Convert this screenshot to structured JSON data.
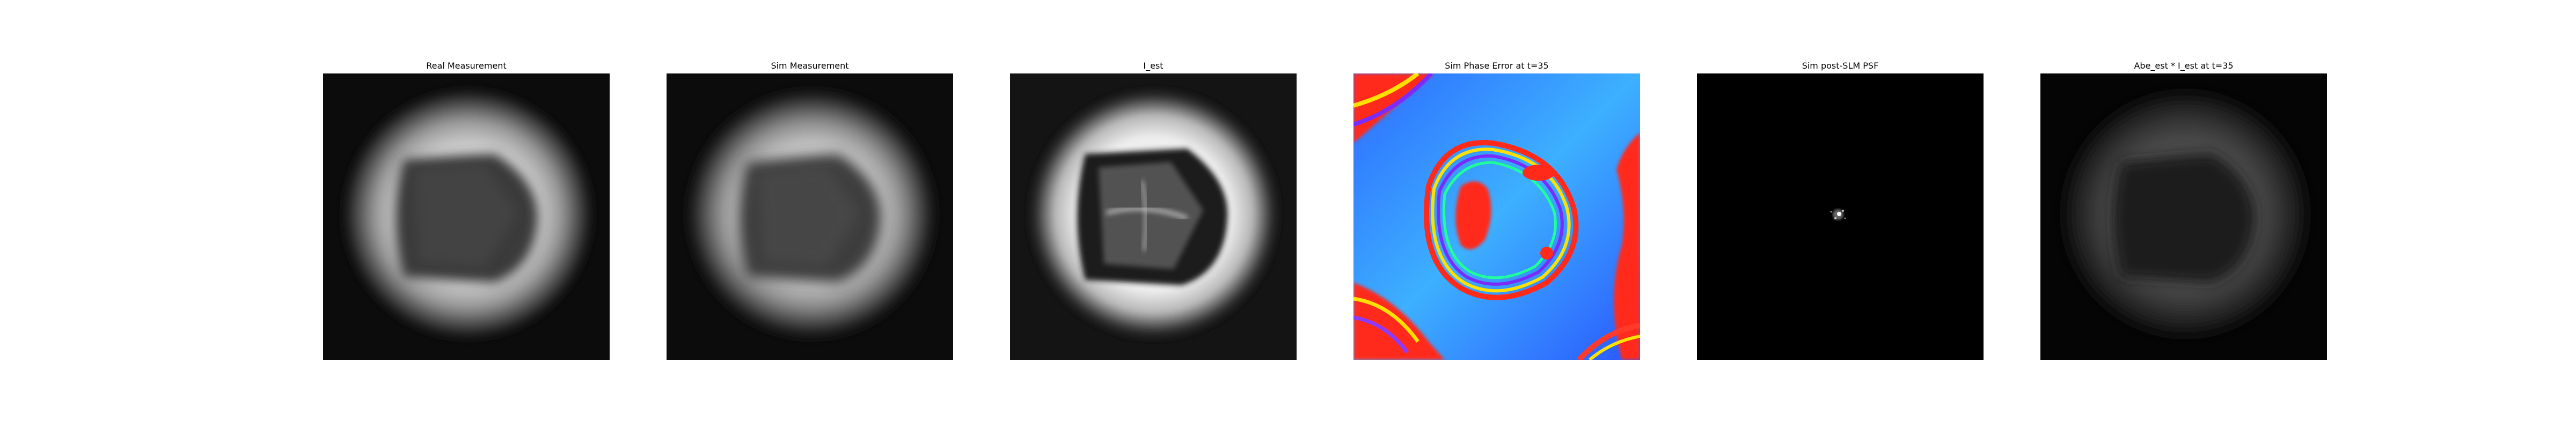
{
  "figure": {
    "panels": [
      {
        "title": "Real Measurement"
      },
      {
        "title": "Sim Measurement"
      },
      {
        "title": "I_est"
      },
      {
        "title": "Sim Phase Error at t=35"
      },
      {
        "title": "Sim post-SLM PSF"
      },
      {
        "title": "Abe_est * I_est at t=35"
      }
    ]
  }
}
